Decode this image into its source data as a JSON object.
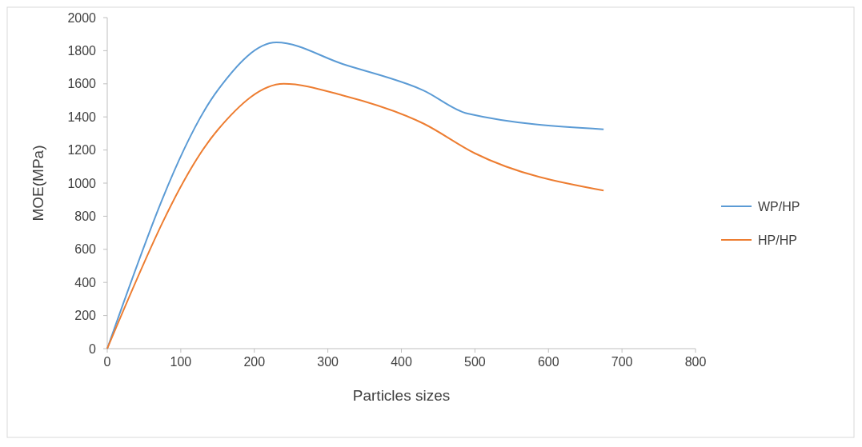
{
  "chart_data": {
    "type": "line",
    "xlabel": "Particles sizes",
    "ylabel": "MOE(MPa)",
    "xlim": [
      0,
      800
    ],
    "xticks": [
      0,
      100,
      200,
      300,
      400,
      500,
      600,
      700,
      800
    ],
    "ylim": [
      0,
      2000
    ],
    "yticks": [
      0,
      200,
      400,
      600,
      800,
      1000,
      1200,
      1400,
      1600,
      1800,
      2000
    ],
    "grid": false,
    "legend": "right",
    "marker": "none",
    "line_style": "solid",
    "series": [
      {
        "name": "WP/HP",
        "color": "#5b9bd5",
        "x": [
          0,
          150,
          230,
          320,
          430,
          490,
          675
        ],
        "values": [
          0,
          1560,
          1850,
          1720,
          1560,
          1420,
          1325
        ]
      },
      {
        "name": "HP/HP",
        "color": "#ed7d31",
        "x": [
          0,
          150,
          240,
          320,
          430,
          500,
          675
        ],
        "values": [
          0,
          1320,
          1600,
          1530,
          1360,
          1180,
          955
        ]
      }
    ]
  }
}
